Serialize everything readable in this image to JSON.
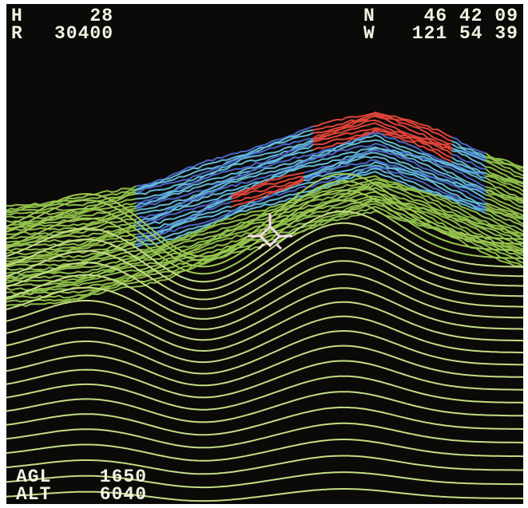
{
  "hud": {
    "heading": {
      "label": "H",
      "value": "28"
    },
    "range": {
      "label": "R",
      "value": "30400"
    },
    "latitude": {
      "label": "N",
      "value": "46 42 09"
    },
    "longitude": {
      "label": "W",
      "value": "121 54 39"
    },
    "agl": {
      "label": "AGL",
      "value": "1650"
    },
    "altitude": {
      "label": "ALT",
      "value": "6040"
    }
  }
}
